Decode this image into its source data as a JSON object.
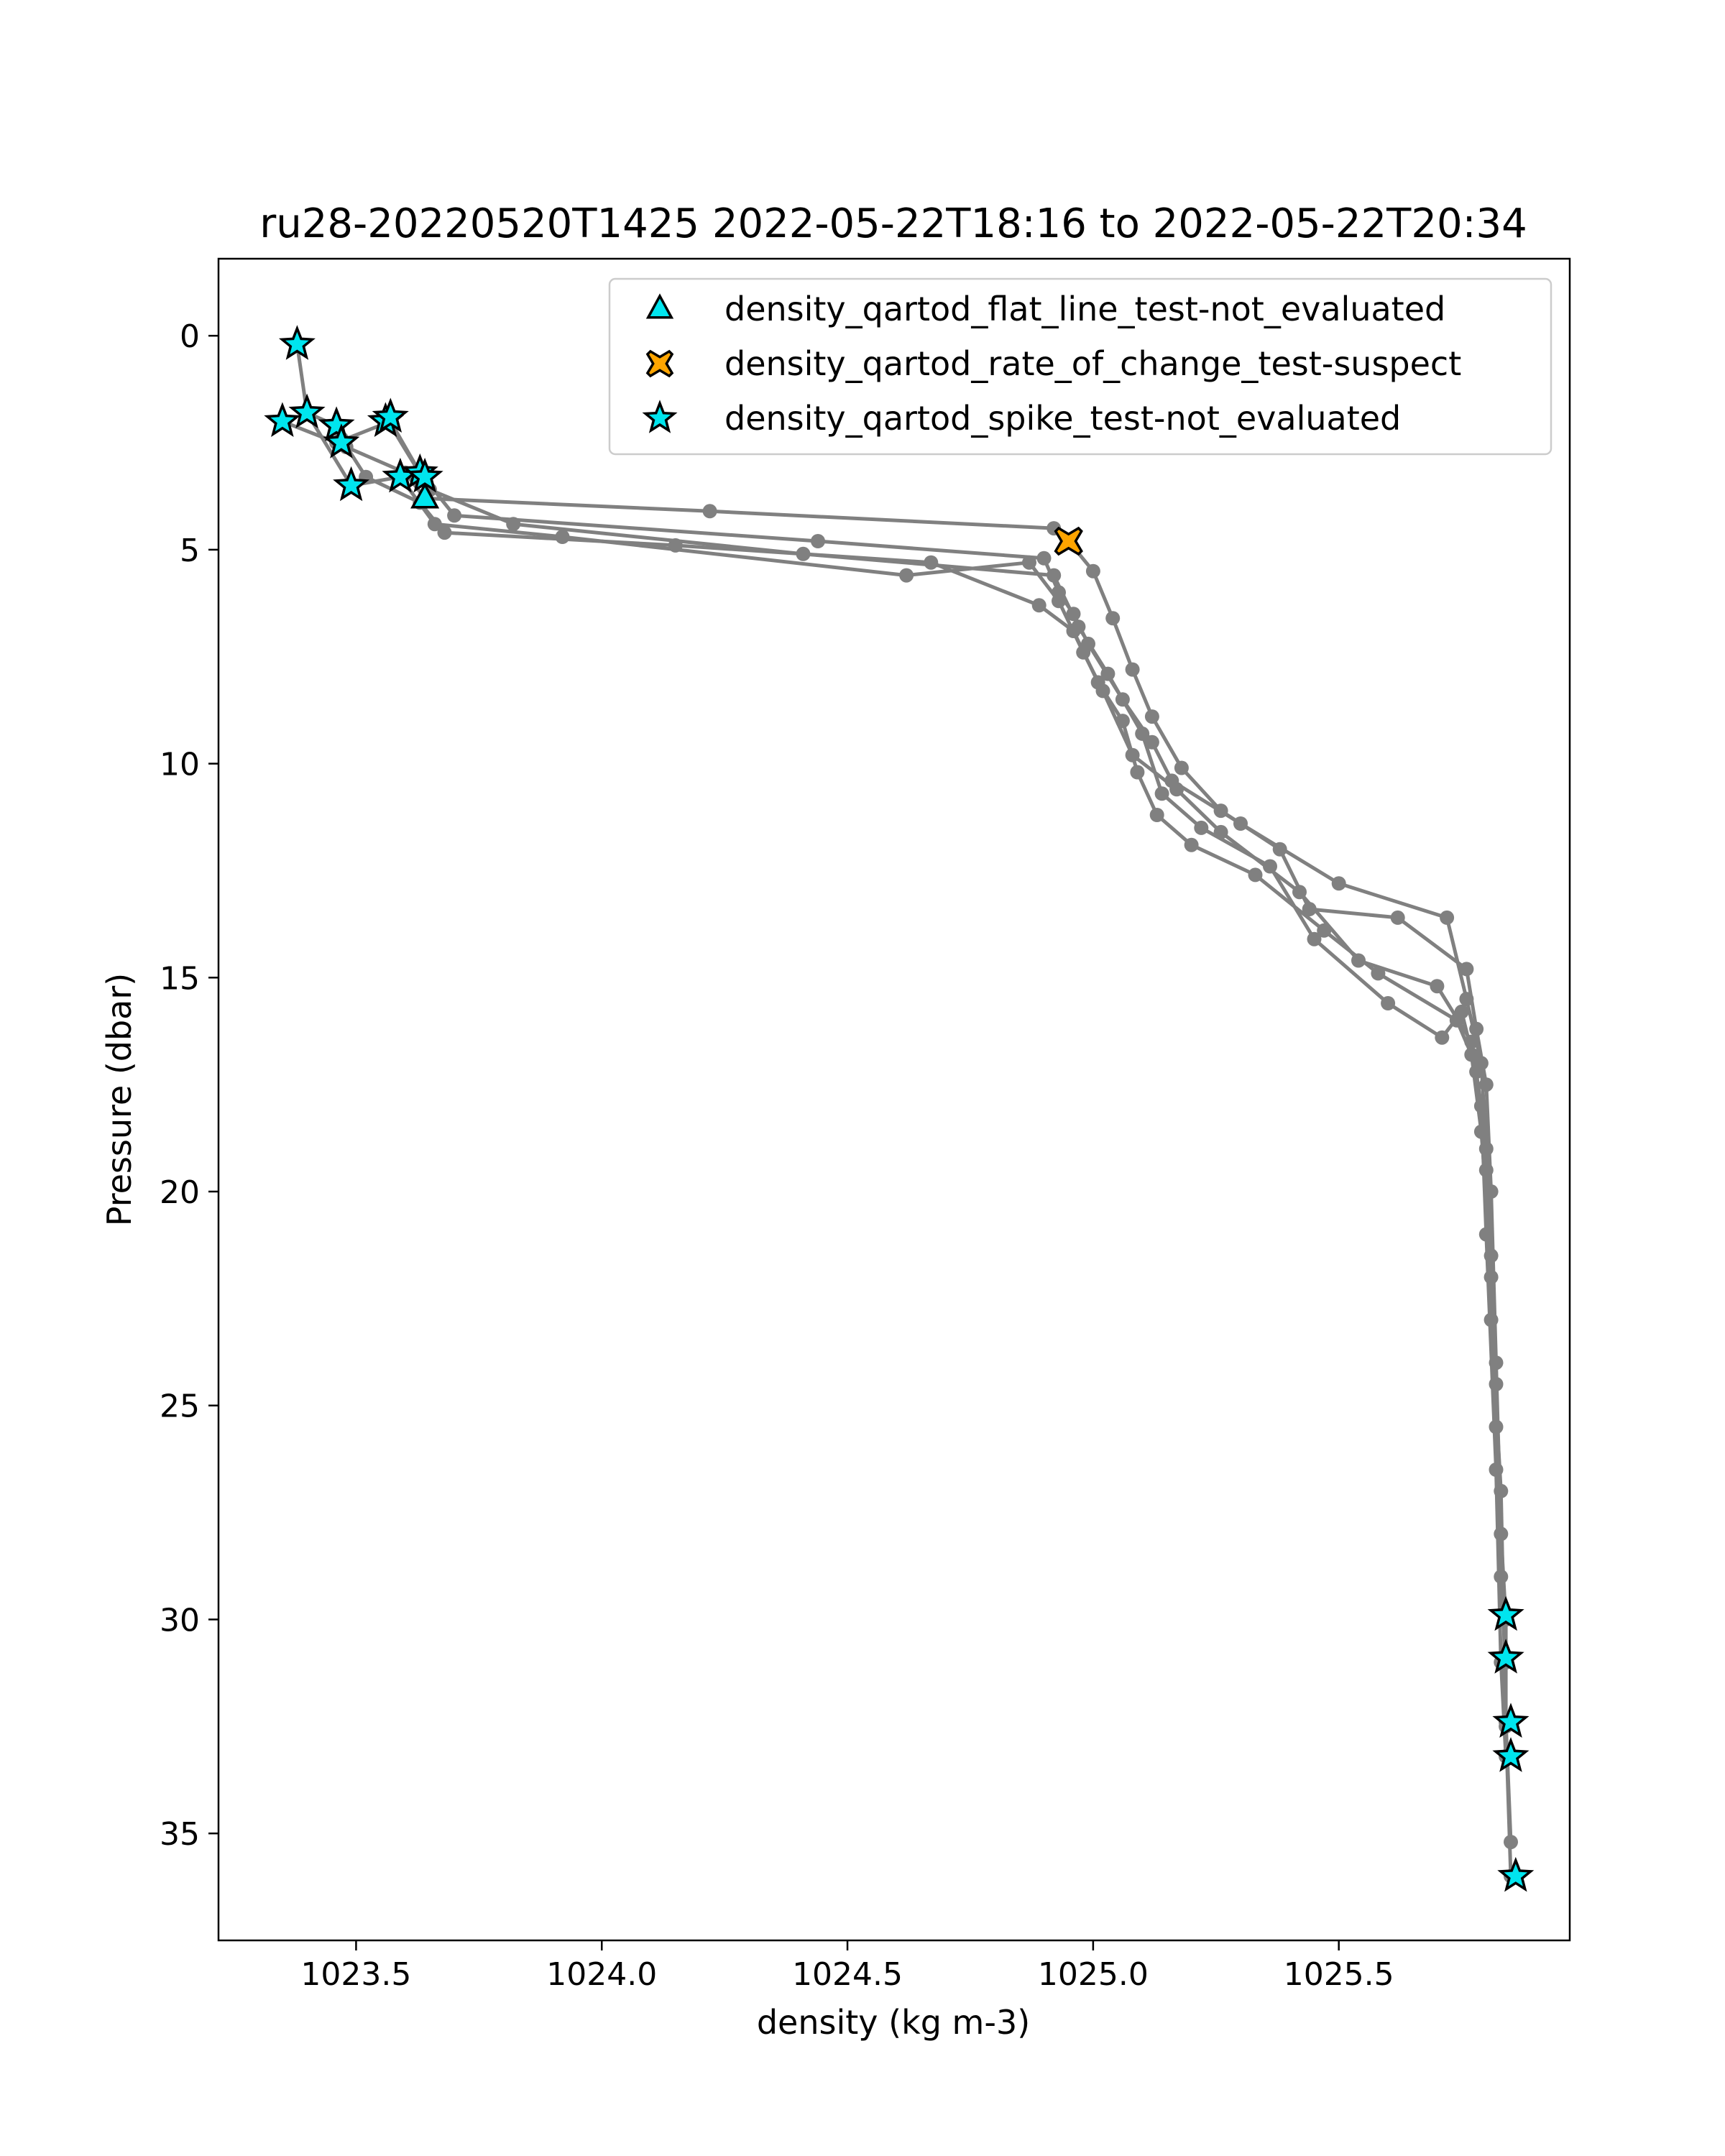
{
  "chart_data": {
    "type": "scatter",
    "title": "ru28-20220520T1425 2022-05-22T18:16 to 2022-05-22T20:34",
    "xlabel": "density (kg m-3)",
    "ylabel": "Pressure (dbar)",
    "xlim": [
      1023.22,
      1025.97
    ],
    "ylim": [
      37.5,
      -1.8
    ],
    "y_inverted": true,
    "grid": false,
    "legend_position": "top-right",
    "x_ticks": [
      1023.5,
      1024.0,
      1024.5,
      1025.0,
      1025.5
    ],
    "x_tick_labels": [
      "1023.5",
      "1024.0",
      "1024.5",
      "1025.0",
      "1025.5"
    ],
    "y_ticks": [
      0,
      5,
      10,
      15,
      20,
      25,
      30,
      35
    ],
    "y_tick_labels": [
      "0",
      "5",
      "10",
      "15",
      "20",
      "25",
      "30",
      "35"
    ],
    "colors": {
      "profile": "#808080",
      "flat_line": "#00e5ee",
      "rate_of_change": "#ffa500",
      "spike": "#00e5ee",
      "edge": "#000000"
    },
    "profiles": [
      {
        "x": [
          1023.38,
          1023.4,
          1023.46,
          1023.48,
          1023.6,
          1023.64,
          1024.22,
          1024.92,
          1024.95,
          1025.0,
          1025.04,
          1025.08,
          1025.12,
          1025.18,
          1025.26,
          1025.38,
          1025.44,
          1025.62,
          1025.76,
          1025.78,
          1025.8,
          1025.81,
          1025.82,
          1025.83,
          1025.84,
          1025.84,
          1025.85
        ],
        "y": [
          0.2,
          1.8,
          2.1,
          2.6,
          3.2,
          3.8,
          4.1,
          4.5,
          4.8,
          5.5,
          6.6,
          7.8,
          8.9,
          10.1,
          11.1,
          12.0,
          13.4,
          13.6,
          14.8,
          16.2,
          17.5,
          20.0,
          24.0,
          28.0,
          30.0,
          32.5,
          36.0
        ]
      },
      {
        "x": [
          1023.35,
          1023.46,
          1023.57,
          1023.63,
          1023.7,
          1024.44,
          1024.9,
          1024.93,
          1024.96,
          1024.99,
          1025.06,
          1025.12,
          1025.16,
          1025.3,
          1025.5,
          1025.72,
          1025.76,
          1025.79,
          1025.8,
          1025.81,
          1025.82,
          1025.83,
          1025.84
        ],
        "y": [
          2.0,
          2.5,
          2.0,
          3.2,
          4.2,
          4.8,
          5.2,
          6.0,
          6.5,
          7.2,
          8.5,
          9.5,
          10.4,
          11.4,
          12.8,
          13.6,
          15.5,
          17.0,
          19.0,
          22.0,
          25.5,
          29.0,
          31.0
        ]
      },
      {
        "x": [
          1023.4,
          1023.49,
          1023.59,
          1023.66,
          1023.92,
          1024.62,
          1024.87,
          1024.93,
          1024.98,
          1025.02,
          1025.08,
          1025.17,
          1025.26,
          1025.42,
          1025.54,
          1025.7,
          1025.77,
          1025.79,
          1025.8,
          1025.82,
          1025.83,
          1025.84
        ],
        "y": [
          1.8,
          3.5,
          3.3,
          4.4,
          4.7,
          5.6,
          5.3,
          6.2,
          7.4,
          8.3,
          9.8,
          10.6,
          11.6,
          13.0,
          14.6,
          15.2,
          16.5,
          18.0,
          21.0,
          26.5,
          31.0,
          33.2
        ]
      },
      {
        "x": [
          1023.56,
          1023.65,
          1023.82,
          1024.41,
          1024.92,
          1024.97,
          1025.03,
          1025.1,
          1025.14,
          1025.22,
          1025.36,
          1025.45,
          1025.6,
          1025.71,
          1025.75,
          1025.78,
          1025.8,
          1025.81,
          1025.83,
          1025.84,
          1025.85
        ],
        "y": [
          1.9,
          3.6,
          4.4,
          5.1,
          5.6,
          6.8,
          7.9,
          9.3,
          10.7,
          11.5,
          12.4,
          14.1,
          15.6,
          16.4,
          15.8,
          17.2,
          19.5,
          23.0,
          27.0,
          32.4,
          35.2
        ]
      },
      {
        "x": [
          1023.47,
          1023.52,
          1023.63,
          1023.68,
          1024.15,
          1024.67,
          1024.89,
          1024.96,
          1025.01,
          1025.06,
          1025.09,
          1025.13,
          1025.2,
          1025.33,
          1025.47,
          1025.58,
          1025.74,
          1025.77,
          1025.79,
          1025.81,
          1025.82
        ],
        "y": [
          2.4,
          3.3,
          3.9,
          4.6,
          4.9,
          5.3,
          6.3,
          6.9,
          8.1,
          9.0,
          10.2,
          11.2,
          11.9,
          12.6,
          13.9,
          14.9,
          16.0,
          16.8,
          18.6,
          21.5,
          24.5
        ]
      }
    ],
    "qc_series": [
      {
        "name": "density_qartod_flat_line_test-not_evaluated",
        "marker": "triangle",
        "x": [
          1023.64
        ],
        "y": [
          3.8
        ]
      },
      {
        "name": "density_qartod_rate_of_change_test-suspect",
        "marker": "x",
        "x": [
          1024.95
        ],
        "y": [
          4.8
        ]
      },
      {
        "name": "density_qartod_spike_test-not_evaluated",
        "marker": "star",
        "x": [
          1023.38,
          1023.35,
          1023.4,
          1023.46,
          1023.47,
          1023.49,
          1023.56,
          1023.57,
          1023.59,
          1023.63,
          1023.64,
          1025.84,
          1025.84,
          1025.85,
          1025.85,
          1025.86
        ],
        "y": [
          0.2,
          2.0,
          1.8,
          2.1,
          2.5,
          3.5,
          2.0,
          1.9,
          3.3,
          3.2,
          3.3,
          29.9,
          30.9,
          32.4,
          33.2,
          36.0
        ]
      }
    ]
  }
}
